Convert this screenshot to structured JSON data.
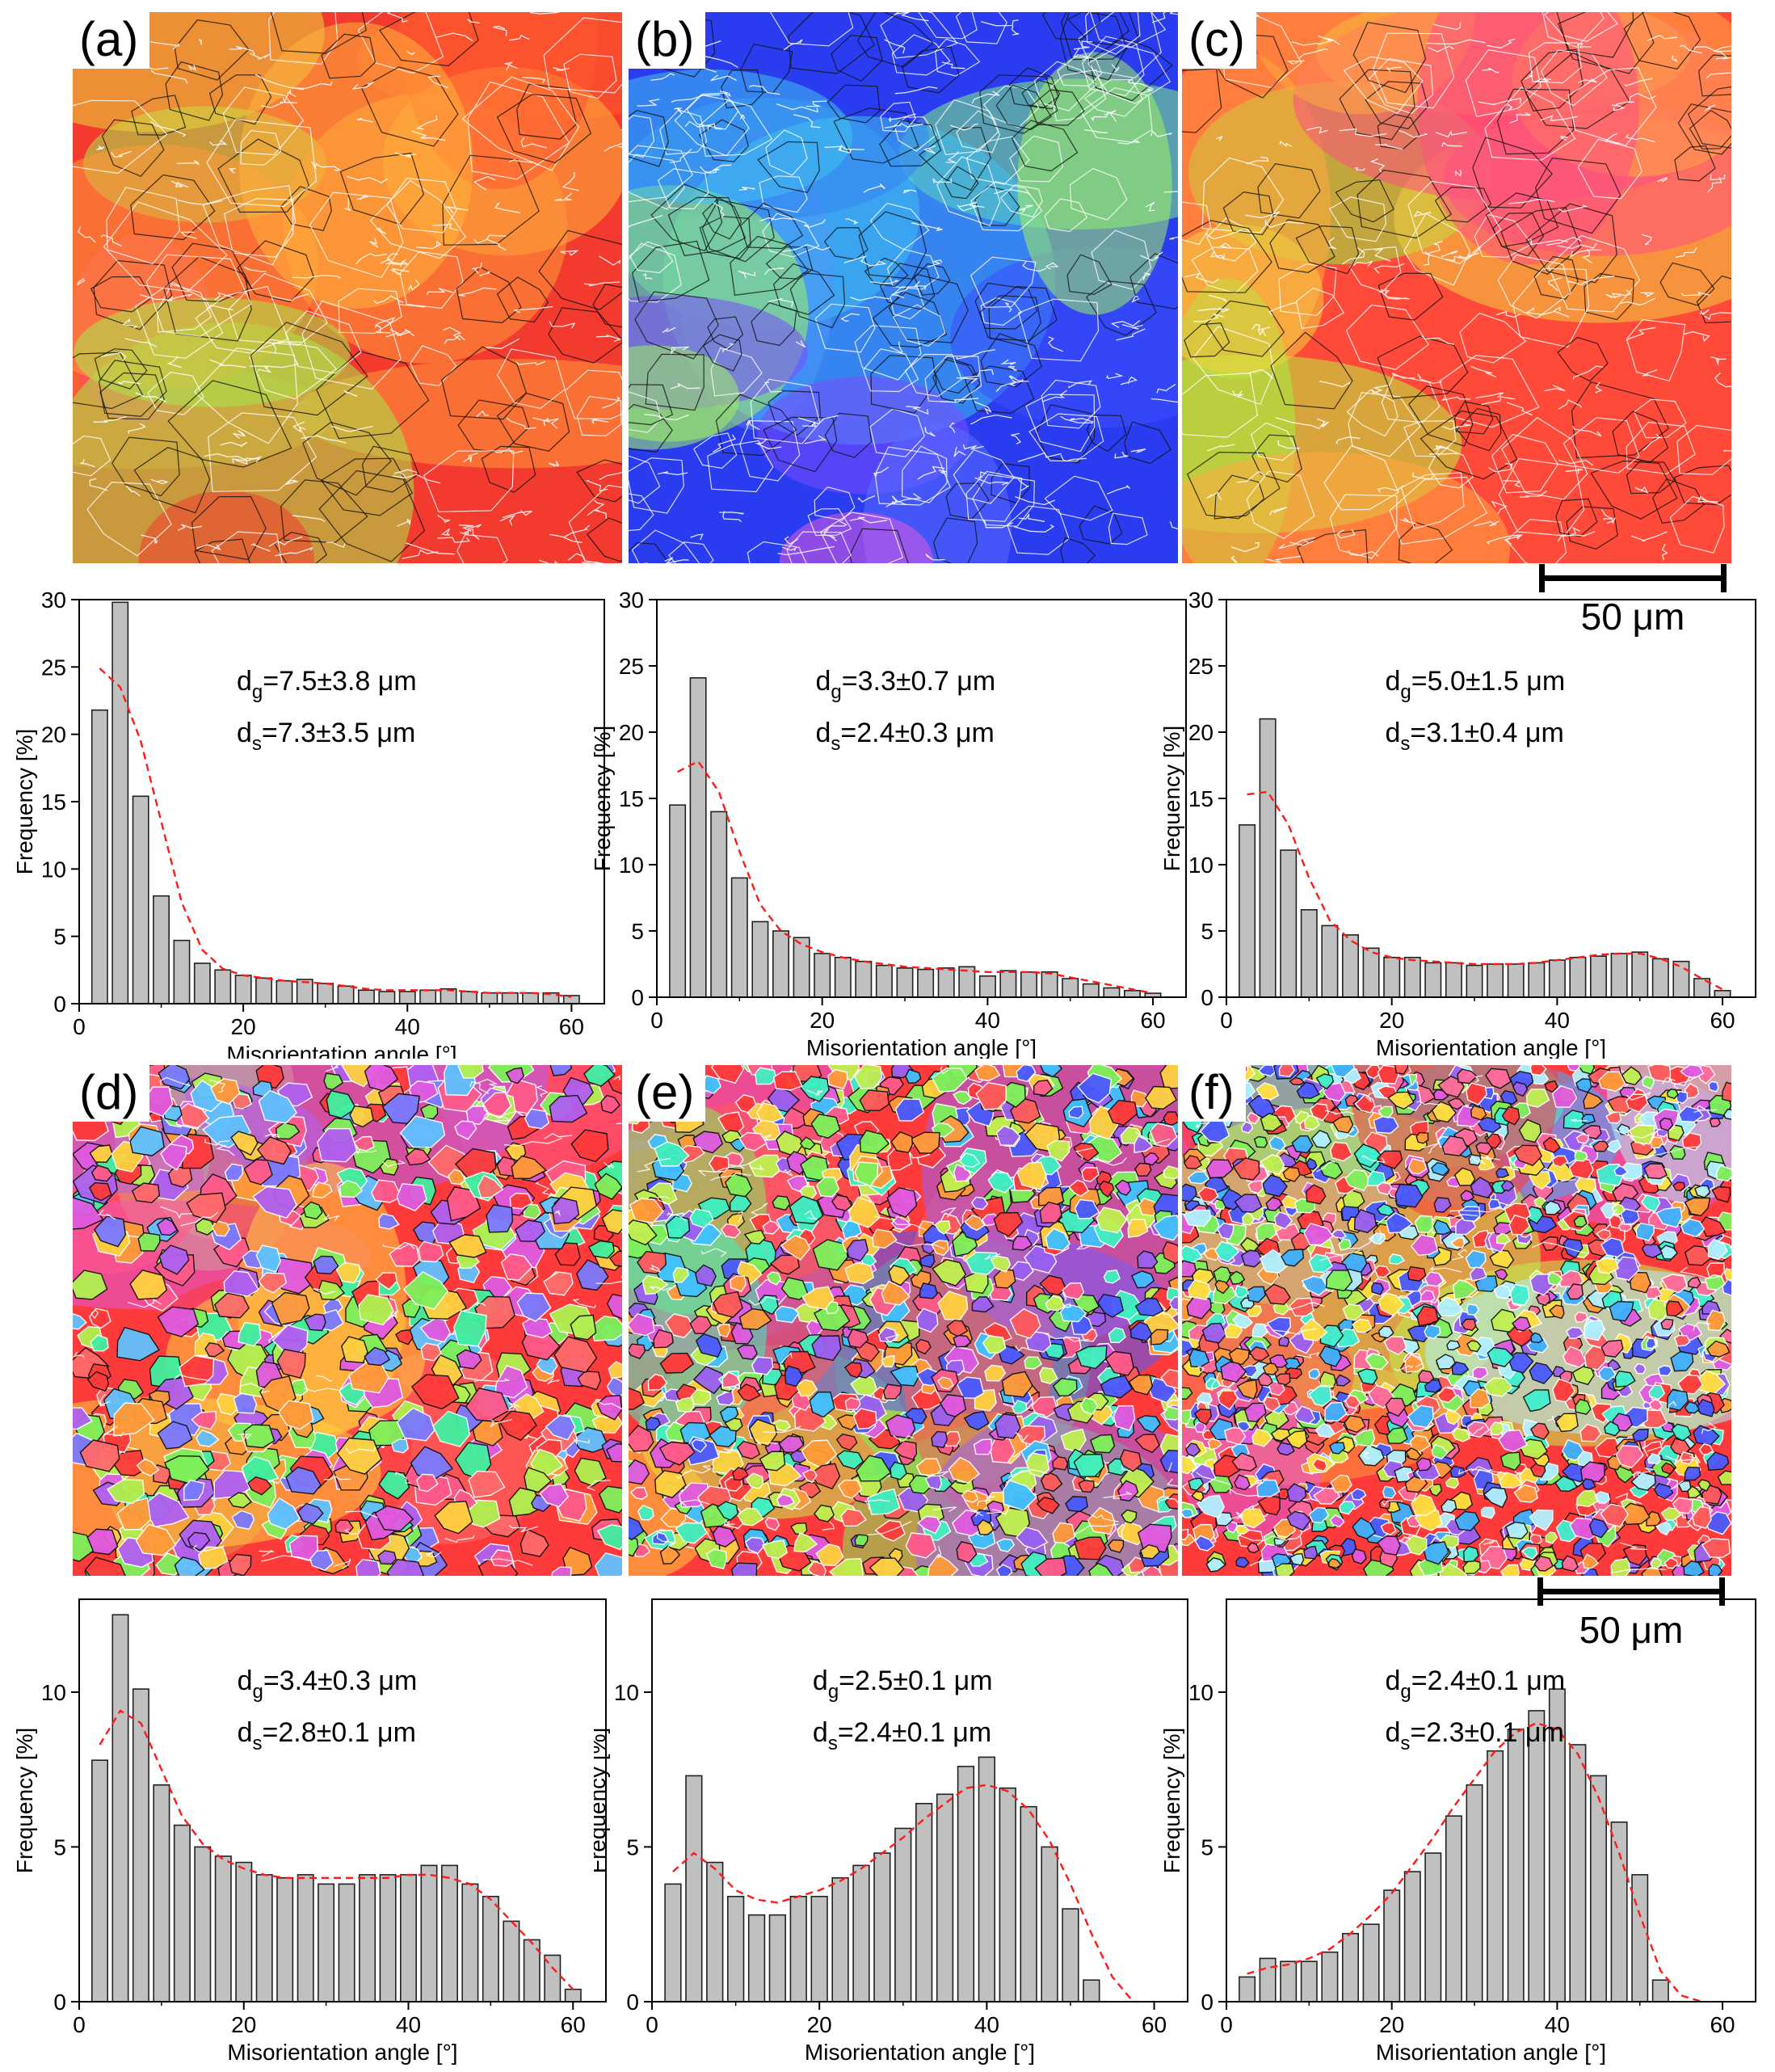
{
  "maps": [
    {
      "label": "(a)",
      "palette": [
        "#f23a2e",
        "#ff5a30",
        "#ff7a38",
        "#ff9a3a",
        "#ffb43c",
        "#e8d63c",
        "#a8e84a",
        "#7fe64a",
        "#ff4c6a"
      ]
    },
    {
      "label": "(b)",
      "palette": [
        "#2a3cf0",
        "#3a50ff",
        "#5a6cff",
        "#7a4cff",
        "#9a5cf0",
        "#c05af0",
        "#e05ae0",
        "#40c0f0",
        "#60e0c0",
        "#80f080",
        "#a0f060"
      ]
    },
    {
      "label": "(c)",
      "palette": [
        "#ff4a3a",
        "#ff6a3a",
        "#ff8a3a",
        "#ffaa40",
        "#f0d040",
        "#b8f040",
        "#90f040",
        "#7ee84a",
        "#ff5080"
      ]
    },
    {
      "label": "(d)",
      "palette": [
        "#ff3a3a",
        "#ff5a8a",
        "#e05ae0",
        "#b060f0",
        "#7a7aff",
        "#60c0ff",
        "#7ef05a",
        "#b0f050",
        "#ffd040",
        "#ff9a3a",
        "#ff6a6a",
        "#40f0a0"
      ]
    },
    {
      "label": "(e)",
      "palette": [
        "#ff3a3a",
        "#ff5a8a",
        "#e05ae0",
        "#9a60f0",
        "#4a5aff",
        "#40c0ff",
        "#40f0c0",
        "#7ef05a",
        "#c0f050",
        "#ffd040",
        "#ff9a3a",
        "#ff5a5a"
      ]
    },
    {
      "label": "(f)",
      "palette": [
        "#ff3a3a",
        "#ff6a9a",
        "#e05ae0",
        "#9a60f0",
        "#4a5aff",
        "#40b0ff",
        "#40f0d0",
        "#7ef05a",
        "#c0f050",
        "#ffe040",
        "#ff9a3a",
        "#ff5a5a",
        "#b0f0ff"
      ]
    }
  ],
  "scalebars": [
    {
      "label": "50 μm"
    },
    {
      "label": "50 μm"
    }
  ],
  "chart_data": [
    {
      "type": "bar",
      "panel": "a",
      "x": [
        2.5,
        5,
        7.5,
        10,
        12.5,
        15,
        17.5,
        20,
        22.5,
        25,
        27.5,
        30,
        32.5,
        35,
        37.5,
        40,
        42.5,
        45,
        47.5,
        50,
        52.5,
        55,
        57.5,
        60
      ],
      "values": [
        21.8,
        29.8,
        15.4,
        8.0,
        4.7,
        3.0,
        2.5,
        2.1,
        1.9,
        1.7,
        1.8,
        1.5,
        1.3,
        1.0,
        0.9,
        0.9,
        1.0,
        1.1,
        0.9,
        0.8,
        0.8,
        0.8,
        0.8,
        0.6
      ],
      "fit": [
        24.9,
        23.5,
        19.5,
        13.5,
        7.5,
        4.0,
        2.6,
        2.1,
        1.9,
        1.7,
        1.6,
        1.5,
        1.3,
        1.1,
        1.0,
        1.0,
        1.0,
        1.0,
        0.9,
        0.8,
        0.8,
        0.8,
        0.7,
        0.5
      ],
      "xlabel": "Misorientation angle [°]",
      "ylabel": "Frequency [%]",
      "xlim": [
        0,
        64
      ],
      "ylim": [
        0,
        30
      ],
      "xticks": [
        "0",
        "20",
        "40",
        "60"
      ],
      "yticks": [
        "0",
        "5",
        "10",
        "15",
        "20",
        "25",
        "30"
      ],
      "dg": "7.5±3.8 μm",
      "ds": "7.3±3.5 μm"
    },
    {
      "type": "bar",
      "panel": "b",
      "x": [
        2.5,
        5,
        7.5,
        10,
        12.5,
        15,
        17.5,
        20,
        22.5,
        25,
        27.5,
        30,
        32.5,
        35,
        37.5,
        40,
        42.5,
        45,
        47.5,
        50,
        52.5,
        55,
        57.5,
        60
      ],
      "values": [
        14.5,
        24.1,
        14.0,
        9.0,
        5.7,
        5.0,
        4.5,
        3.3,
        3.0,
        2.7,
        2.4,
        2.2,
        2.1,
        2.2,
        2.3,
        1.6,
        2.0,
        1.9,
        1.9,
        1.4,
        1.0,
        0.7,
        0.5,
        0.3
      ],
      "fit": [
        17.0,
        17.8,
        15.5,
        11.0,
        7.0,
        5.0,
        4.0,
        3.4,
        3.0,
        2.7,
        2.5,
        2.3,
        2.2,
        2.1,
        2.0,
        1.9,
        1.9,
        1.9,
        1.8,
        1.5,
        1.2,
        0.9,
        0.6,
        0.3
      ],
      "xlabel": "Misorientation angle [°]",
      "ylabel": "Frequency [%]",
      "xlim": [
        0,
        64
      ],
      "ylim": [
        0,
        30
      ],
      "xticks": [
        "0",
        "20",
        "40",
        "60"
      ],
      "yticks": [
        "0",
        "5",
        "10",
        "15",
        "20",
        "25",
        "30"
      ],
      "dg": "3.3±0.7 μm",
      "ds": "2.4±0.3 μm"
    },
    {
      "type": "bar",
      "panel": "c",
      "x": [
        2.5,
        5,
        7.5,
        10,
        12.5,
        15,
        17.5,
        20,
        22.5,
        25,
        27.5,
        30,
        32.5,
        35,
        37.5,
        40,
        42.5,
        45,
        47.5,
        50,
        52.5,
        55,
        57.5,
        60
      ],
      "values": [
        13.0,
        21.0,
        11.1,
        6.6,
        5.4,
        4.7,
        3.7,
        3.0,
        3.0,
        2.6,
        2.6,
        2.4,
        2.5,
        2.5,
        2.6,
        2.8,
        3.0,
        3.1,
        3.3,
        3.4,
        2.9,
        2.7,
        1.4,
        0.5
      ],
      "fit": [
        15.3,
        15.5,
        13.0,
        9.0,
        5.8,
        4.3,
        3.4,
        3.0,
        2.8,
        2.7,
        2.6,
        2.5,
        2.5,
        2.5,
        2.6,
        2.8,
        3.0,
        3.2,
        3.3,
        3.3,
        2.9,
        2.3,
        1.4,
        0.6
      ],
      "xlabel": "Misorientation angle [°]",
      "ylabel": "Frequency [%]",
      "xlim": [
        0,
        64
      ],
      "ylim": [
        0,
        30
      ],
      "xticks": [
        "0",
        "20",
        "40",
        "60"
      ],
      "yticks": [
        "0",
        "5",
        "10",
        "15",
        "20",
        "25",
        "30"
      ],
      "dg": "5.0±1.5 μm",
      "ds": "3.1±0.4 μm"
    },
    {
      "type": "bar",
      "panel": "d",
      "x": [
        2.5,
        5,
        7.5,
        10,
        12.5,
        15,
        17.5,
        20,
        22.5,
        25,
        27.5,
        30,
        32.5,
        35,
        37.5,
        40,
        42.5,
        45,
        47.5,
        50,
        52.5,
        55,
        57.5,
        60
      ],
      "values": [
        7.8,
        12.5,
        10.1,
        7.0,
        5.7,
        5.0,
        4.7,
        4.5,
        4.1,
        4.0,
        4.1,
        3.8,
        3.8,
        4.1,
        4.1,
        4.1,
        4.4,
        4.4,
        3.8,
        3.4,
        2.6,
        2.0,
        1.5,
        0.4
      ],
      "fit": [
        8.3,
        9.4,
        9.0,
        7.5,
        6.0,
        5.1,
        4.6,
        4.3,
        4.1,
        4.0,
        4.0,
        4.0,
        4.0,
        4.0,
        4.0,
        4.1,
        4.1,
        4.0,
        3.8,
        3.3,
        2.6,
        1.9,
        1.1,
        0.4
      ],
      "xlabel": "Misorientation angle [°]",
      "ylabel": "Frequency [%]",
      "xlim": [
        0,
        64
      ],
      "ylim": [
        0,
        13
      ],
      "xticks": [
        "0",
        "20",
        "40",
        "60"
      ],
      "yticks": [
        "0",
        "5",
        "10"
      ],
      "dg": "3.4±0.3 μm",
      "ds": "2.8±0.1 μm"
    },
    {
      "type": "bar",
      "panel": "e",
      "x": [
        2.5,
        5,
        7.5,
        10,
        12.5,
        15,
        17.5,
        20,
        22.5,
        25,
        27.5,
        30,
        32.5,
        35,
        37.5,
        40,
        42.5,
        45,
        47.5,
        50,
        52.5,
        55,
        57.5,
        60
      ],
      "values": [
        3.8,
        7.3,
        4.5,
        3.4,
        2.8,
        2.8,
        3.4,
        3.4,
        4.0,
        4.4,
        4.8,
        5.6,
        6.4,
        6.7,
        7.6,
        7.9,
        6.9,
        6.3,
        5.0,
        3.0,
        0.7,
        0,
        0,
        0
      ],
      "fit": [
        4.2,
        4.8,
        4.3,
        3.6,
        3.3,
        3.2,
        3.4,
        3.6,
        3.9,
        4.3,
        4.8,
        5.3,
        5.9,
        6.4,
        6.9,
        7.0,
        6.8,
        6.2,
        5.2,
        3.8,
        2.2,
        0.8,
        0,
        0
      ],
      "xlabel": "Misorientation angle [°]",
      "ylabel": "Frequency [%]",
      "xlim": [
        0,
        64
      ],
      "ylim": [
        0,
        13
      ],
      "xticks": [
        "0",
        "20",
        "40",
        "60"
      ],
      "yticks": [
        "0",
        "5",
        "10"
      ],
      "dg": "2.5±0.1 μm",
      "ds": "2.4±0.1 μm"
    },
    {
      "type": "bar",
      "panel": "f",
      "x": [
        2.5,
        5,
        7.5,
        10,
        12.5,
        15,
        17.5,
        20,
        22.5,
        25,
        27.5,
        30,
        32.5,
        35,
        37.5,
        40,
        42.5,
        45,
        47.5,
        50,
        52.5,
        55,
        57.5,
        60
      ],
      "values": [
        0.8,
        1.4,
        1.3,
        1.3,
        1.6,
        2.2,
        2.5,
        3.6,
        4.2,
        4.8,
        6.0,
        7.0,
        8.1,
        8.8,
        9.4,
        10.1,
        8.3,
        7.3,
        5.8,
        4.1,
        0.7,
        0,
        0,
        0
      ],
      "fit": [
        0.9,
        1.1,
        1.2,
        1.4,
        1.7,
        2.2,
        2.8,
        3.5,
        4.4,
        5.3,
        6.3,
        7.2,
        8.1,
        8.7,
        9.0,
        8.8,
        8.0,
        6.6,
        4.8,
        2.8,
        1.0,
        0.2,
        0,
        0
      ],
      "xlabel": "Misorientation angle [°]",
      "ylabel": "Frequency [%]",
      "xlim": [
        0,
        64
      ],
      "ylim": [
        0,
        13
      ],
      "xticks": [
        "0",
        "20",
        "40",
        "60"
      ],
      "yticks": [
        "0",
        "5",
        "10"
      ],
      "dg": "2.4±0.1 μm",
      "ds": "2.3±0.1 μm"
    }
  ]
}
